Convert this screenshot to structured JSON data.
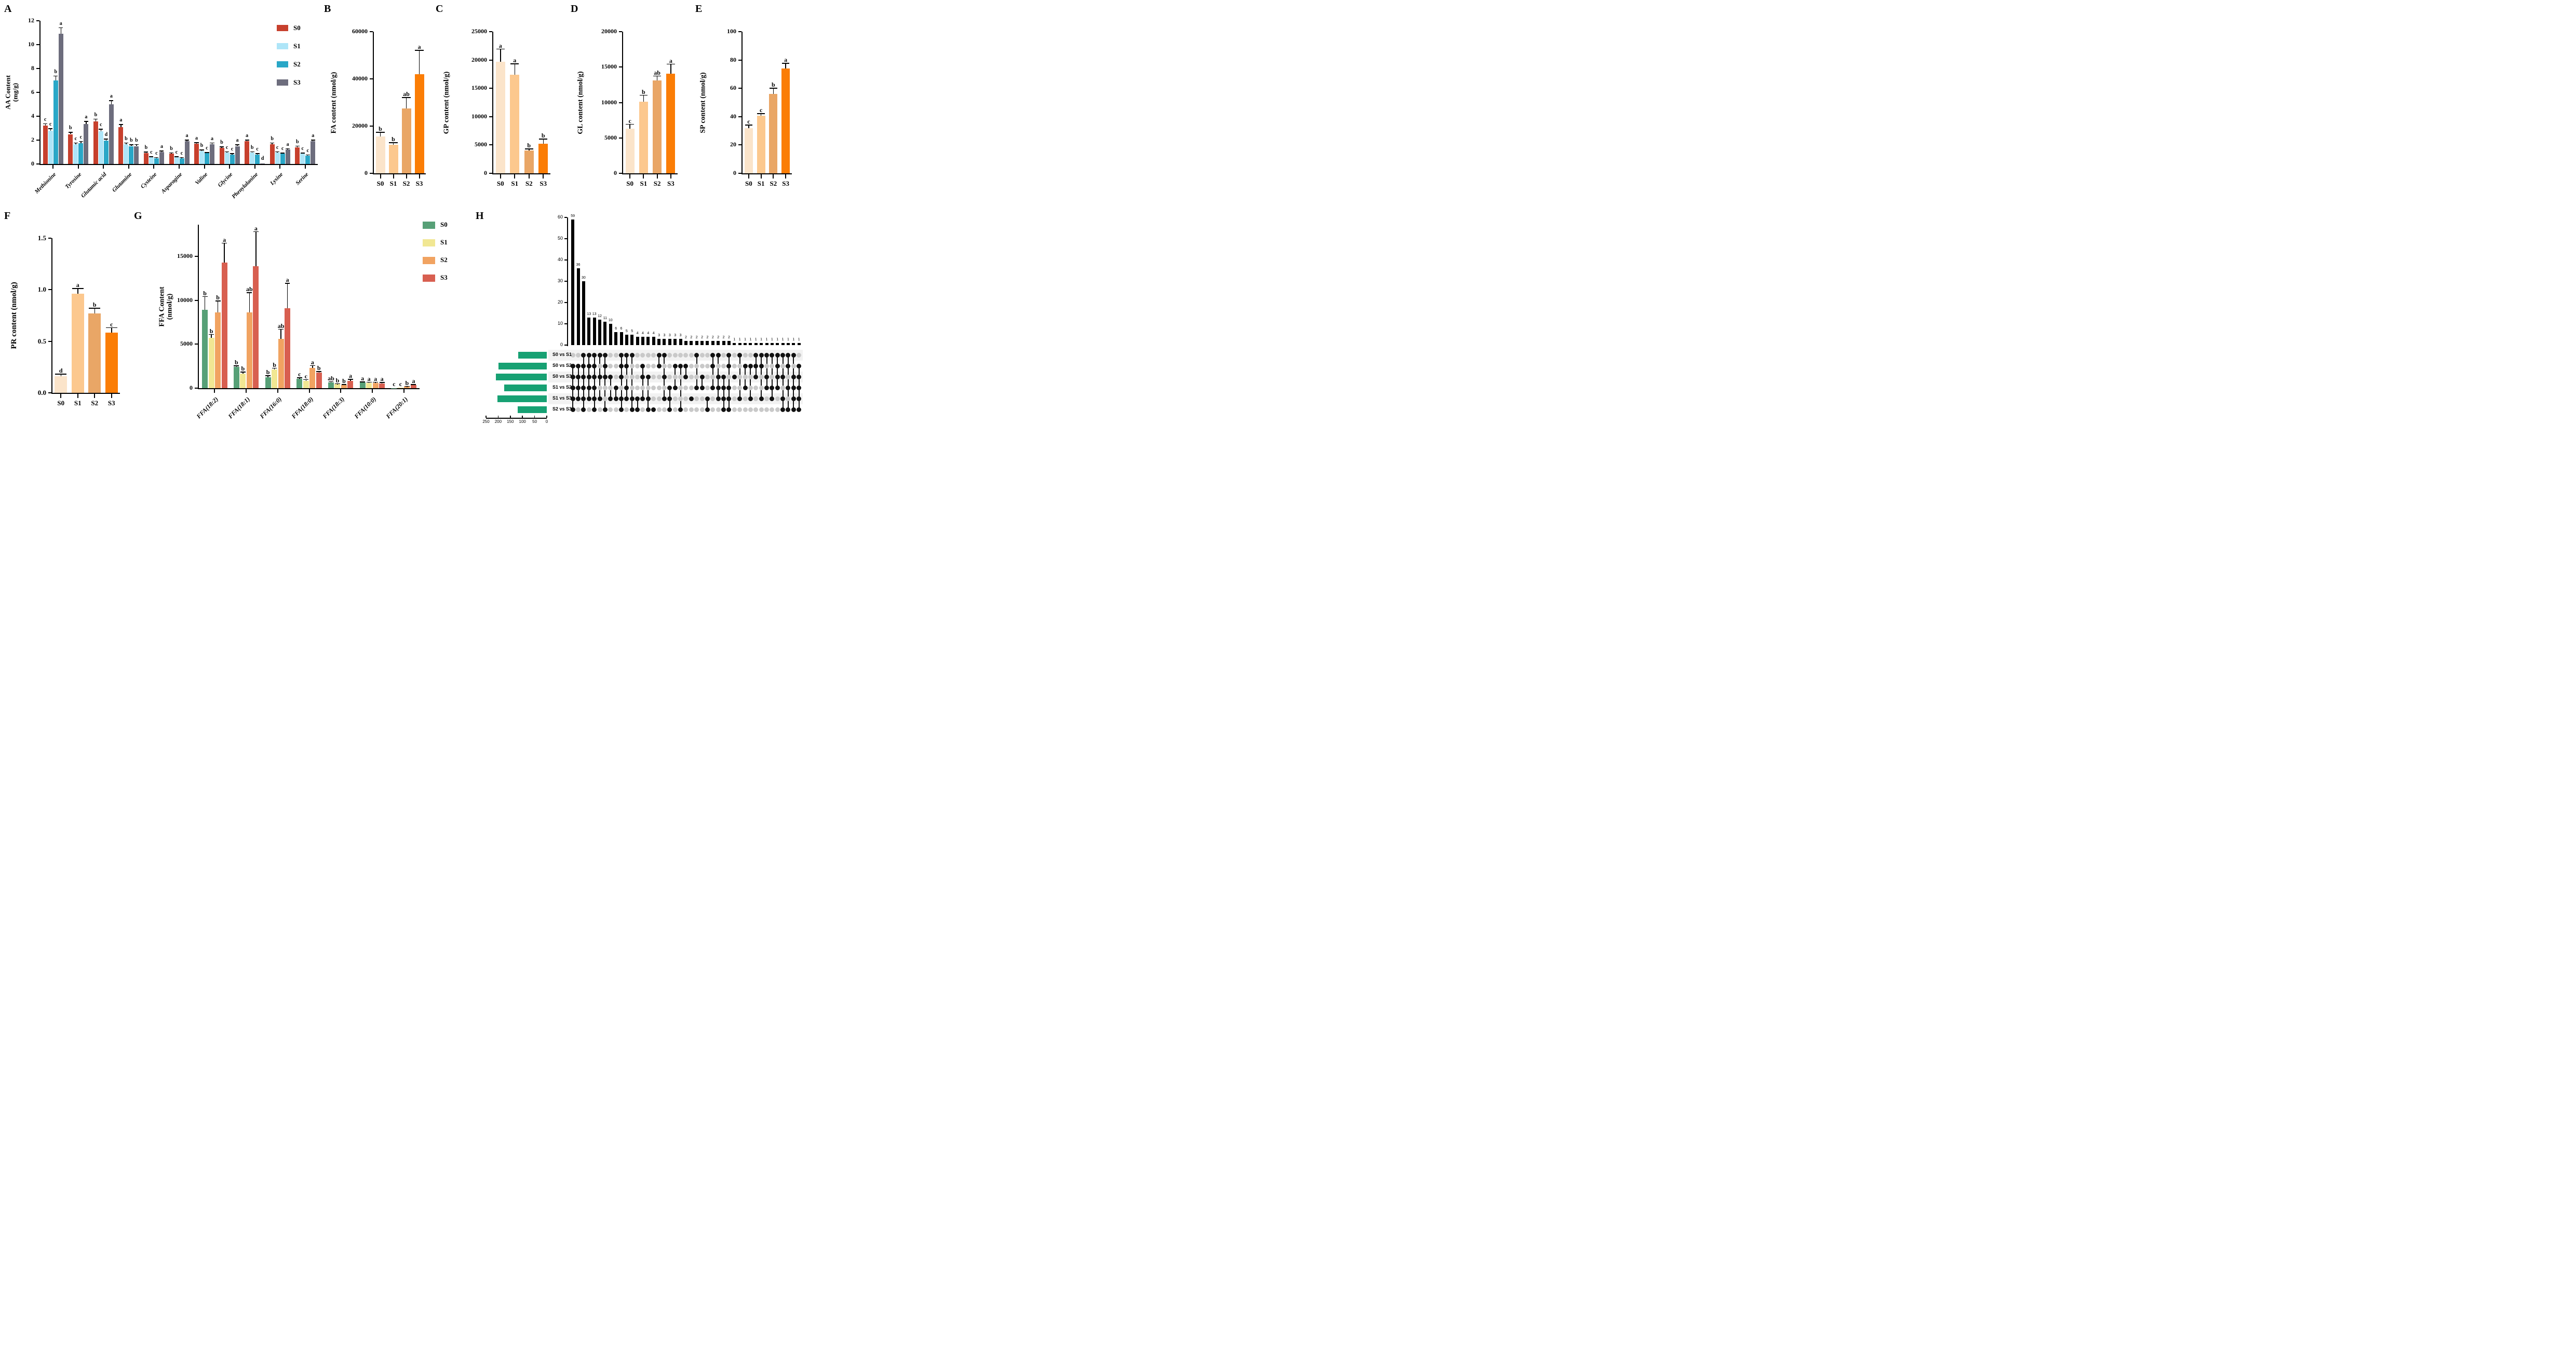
{
  "figure": {
    "background": "#ffffff",
    "panel_labels": [
      "A",
      "B",
      "C",
      "D",
      "E",
      "F",
      "G",
      "H"
    ]
  },
  "chart_data": [
    {
      "panel": "A",
      "type": "grouped_bar",
      "ylabel_lines": [
        "AA Content",
        "(mg/g)"
      ],
      "ylim": [
        0,
        12
      ],
      "yticks": [
        "0",
        "2",
        "4",
        "6",
        "8",
        "10",
        "12"
      ],
      "ytick_vals": [
        0,
        2,
        4,
        6,
        8,
        10,
        12
      ],
      "categories": [
        "Methionine",
        "Tyrosine",
        "Glutamic acid",
        "Glutamine",
        "Cysteine",
        "Asparagine",
        "Valine",
        "Glycine",
        "Phenylalanine",
        "Lysine",
        "Serine"
      ],
      "legend_position": "top-right",
      "series": [
        {
          "name": "S0",
          "color": "#c7402d",
          "values": [
            3.2,
            2.5,
            3.55,
            3.1,
            0.9,
            0.85,
            1.7,
            1.35,
            1.9,
            1.65,
            1.4
          ],
          "errors": [
            0.15,
            0.15,
            0.2,
            0.2,
            0.08,
            0.07,
            0.08,
            0.08,
            0.1,
            0.1,
            0.08
          ],
          "letters": [
            "c",
            "b",
            "b",
            "a",
            "b",
            "b",
            "a",
            "b",
            "a",
            "b",
            "b"
          ]
        },
        {
          "name": "S1",
          "color": "#aee5f8",
          "values": [
            2.8,
            1.65,
            2.75,
            1.65,
            0.55,
            0.55,
            1.1,
            0.95,
            0.95,
            0.95,
            0.85
          ],
          "errors": [
            0.15,
            0.1,
            0.15,
            0.1,
            0.05,
            0.05,
            0.07,
            0.06,
            0.06,
            0.06,
            0.06
          ],
          "letters": [
            "c",
            "c",
            "c",
            "b",
            "c",
            "c",
            "b",
            "c",
            "b",
            "c",
            "c"
          ]
        },
        {
          "name": "S2",
          "color": "#29a7c7",
          "values": [
            7.0,
            1.75,
            1.95,
            1.5,
            0.5,
            0.5,
            0.9,
            0.8,
            0.8,
            0.85,
            0.7
          ],
          "errors": [
            0.35,
            0.12,
            0.12,
            0.1,
            0.04,
            0.04,
            0.05,
            0.05,
            0.05,
            0.05,
            0.05
          ],
          "letters": [
            "b",
            "c",
            "d",
            "b",
            "c",
            "c",
            "c",
            "c",
            "c",
            "c",
            "c"
          ]
        },
        {
          "name": "S3",
          "color": "#6d6d7d",
          "values": [
            10.9,
            3.35,
            5.0,
            1.5,
            1.0,
            1.9,
            1.65,
            1.5,
            0.05,
            1.2,
            1.9
          ],
          "errors": [
            0.5,
            0.2,
            0.3,
            0.12,
            0.07,
            0.1,
            0.1,
            0.1,
            0.02,
            0.08,
            0.1
          ],
          "letters": [
            "a",
            "a",
            "a",
            "b",
            "a",
            "a",
            "a",
            "a",
            "d",
            "a",
            "a"
          ]
        }
      ]
    },
    {
      "panel": "B",
      "type": "bar",
      "ylabel": "FA content (nmol/g)",
      "ylim": [
        0,
        60000
      ],
      "yticks": [
        "0",
        "20000",
        "40000",
        "60000"
      ],
      "ytick_vals": [
        0,
        20000,
        40000,
        60000
      ],
      "categories": [
        "S0",
        "S1",
        "S2",
        "S3"
      ],
      "colors": [
        "#fbe4ca",
        "#fcc88e",
        "#e9a666",
        "#fb7d05"
      ],
      "values": [
        15500,
        12000,
        27500,
        42000
      ],
      "errors": [
        1800,
        900,
        4500,
        10000
      ],
      "letters": [
        "b",
        "b",
        "ab",
        "a"
      ]
    },
    {
      "panel": "C",
      "type": "bar",
      "ylabel": "GP content (nmol/g)",
      "ylim": [
        0,
        25000
      ],
      "yticks": [
        "0",
        "5000",
        "10000",
        "15000",
        "20000",
        "25000"
      ],
      "ytick_vals": [
        0,
        5000,
        10000,
        15000,
        20000,
        25000
      ],
      "categories": [
        "S0",
        "S1",
        "S2",
        "S3"
      ],
      "colors": [
        "#fbe4ca",
        "#fcc88e",
        "#e9a666",
        "#fb7d05"
      ],
      "values": [
        19700,
        17400,
        4000,
        5200
      ],
      "errors": [
        2200,
        1900,
        300,
        800
      ],
      "letters": [
        "a",
        "a",
        "b",
        "b"
      ]
    },
    {
      "panel": "D",
      "type": "bar",
      "ylabel": "GL content (nmol/g)",
      "ylim": [
        0,
        20000
      ],
      "yticks": [
        "0",
        "5000",
        "10000",
        "15000",
        "20000"
      ],
      "ytick_vals": [
        0,
        5000,
        10000,
        15000,
        20000
      ],
      "categories": [
        "S0",
        "S1",
        "S2",
        "S3"
      ],
      "colors": [
        "#fbe4ca",
        "#fcc88e",
        "#e9a666",
        "#fb7d05"
      ],
      "values": [
        6300,
        10100,
        13100,
        14100
      ],
      "errors": [
        600,
        900,
        600,
        1300
      ],
      "letters": [
        "c",
        "b",
        "ab",
        "a"
      ]
    },
    {
      "panel": "E",
      "type": "bar",
      "ylabel": "SP content (nmol/g)",
      "ylim": [
        0,
        100
      ],
      "yticks": [
        "0",
        "20",
        "40",
        "60",
        "80",
        "100"
      ],
      "ytick_vals": [
        0,
        20,
        40,
        60,
        80,
        100
      ],
      "categories": [
        "S0",
        "S1",
        "S2",
        "S3"
      ],
      "colors": [
        "#fbe4ca",
        "#fcc88e",
        "#e9a666",
        "#fb7d05"
      ],
      "values": [
        32,
        40.5,
        56,
        74
      ],
      "errors": [
        2,
        1.5,
        4,
        3.5
      ],
      "letters": [
        "c",
        "c",
        "b",
        "a"
      ]
    },
    {
      "panel": "F",
      "type": "bar",
      "ylabel": "PR content (nmol/g)",
      "ylim": [
        0,
        1.5
      ],
      "yticks": [
        "0.0",
        "0.5",
        "1.0",
        "1.5"
      ],
      "ytick_vals": [
        0,
        0.5,
        1.0,
        1.5
      ],
      "categories": [
        "S0",
        "S1",
        "S2",
        "S3"
      ],
      "colors": [
        "#fbe4ca",
        "#fcc88e",
        "#e9a666",
        "#fb7d05"
      ],
      "values": [
        0.16,
        0.96,
        0.77,
        0.585
      ],
      "errors": [
        0.02,
        0.05,
        0.05,
        0.045
      ],
      "letters": [
        "d",
        "a",
        "b",
        "c"
      ]
    },
    {
      "panel": "G",
      "type": "grouped_bar",
      "ylabel_lines": [
        "FFA Content",
        "(nmol/g)"
      ],
      "ylim": [
        0,
        18600
      ],
      "yticks": [
        "0",
        "5000",
        "10000",
        "15000"
      ],
      "ytick_vals": [
        0,
        5000,
        10000,
        15000
      ],
      "categories": [
        "FFA(18:2)",
        "FFA(18:1)",
        "FFA(16:0)",
        "FFA(18:0)",
        "FFA(18:3)",
        "FFA(10:0)",
        "FFA(20:1)"
      ],
      "legend_position": "top-right",
      "series": [
        {
          "name": "S0",
          "color": "#57a077",
          "values": [
            8900,
            2400,
            1250,
            1050,
            650,
            650,
            20
          ],
          "errors": [
            1500,
            120,
            150,
            120,
            60,
            50,
            10
          ],
          "letters": [
            "b",
            "b",
            "b",
            "c",
            "ab",
            "a",
            "c"
          ]
        },
        {
          "name": "S1",
          "color": "#f1e793",
          "values": [
            5700,
            1650,
            2100,
            850,
            450,
            600,
            30
          ],
          "errors": [
            400,
            180,
            150,
            120,
            50,
            50,
            10
          ],
          "letters": [
            "b",
            "b",
            "b",
            "c",
            "b",
            "a",
            "c"
          ]
        },
        {
          "name": "S2",
          "color": "#f1a361",
          "values": [
            8600,
            8650,
            5600,
            2300,
            350,
            600,
            150
          ],
          "errors": [
            1300,
            2200,
            1100,
            250,
            60,
            60,
            30
          ],
          "letters": [
            "b",
            "ab",
            "ab",
            "a",
            "b",
            "a",
            "b"
          ]
        },
        {
          "name": "S3",
          "color": "#d85f50",
          "values": [
            14300,
            13900,
            9100,
            1800,
            800,
            550,
            350
          ],
          "errors": [
            2200,
            3900,
            2800,
            80,
            180,
            80,
            40
          ],
          "letters": [
            "a",
            "a",
            "a",
            "b",
            "a",
            "a",
            "a"
          ]
        }
      ]
    },
    {
      "panel": "H",
      "type": "upset",
      "bar_color": "#000000",
      "set_bar_color": "#17a173",
      "dot_active": "#111111",
      "dot_inactive": "#c9c9c9",
      "intersection_yticks": [
        "0",
        "10",
        "20",
        "30",
        "40",
        "50",
        "60"
      ],
      "intersection_ytick_vals": [
        0,
        10,
        20,
        30,
        40,
        50,
        60
      ],
      "intersection_ylim": [
        0,
        60
      ],
      "set_axis_ticks": [
        "250",
        "200",
        "150",
        "100",
        "50",
        "0"
      ],
      "set_axis_tick_vals": [
        250,
        200,
        150,
        100,
        50,
        0
      ],
      "sets": [
        {
          "name": "S0 vs S1",
          "size": 118
        },
        {
          "name": "S0 vs S2",
          "size": 198
        },
        {
          "name": "S0 vs S3",
          "size": 210
        },
        {
          "name": "S1 vs S2",
          "size": 175
        },
        {
          "name": "S1 vs S3",
          "size": 202
        },
        {
          "name": "S2 vs S3",
          "size": 120
        }
      ],
      "intersections": [
        {
          "value": 59,
          "rows": [
            1,
            2,
            3,
            4,
            5
          ]
        },
        {
          "value": 36,
          "rows": [
            1,
            2,
            3,
            4
          ]
        },
        {
          "value": 30,
          "rows": [
            0,
            1,
            2,
            3,
            4,
            5
          ]
        },
        {
          "value": 13,
          "rows": [
            0,
            1,
            2,
            3,
            4
          ]
        },
        {
          "value": 13,
          "rows": [
            0,
            1,
            2,
            3,
            4,
            5
          ]
        },
        {
          "value": 12,
          "rows": [
            0,
            2,
            4
          ]
        },
        {
          "value": 11,
          "rows": [
            0,
            1,
            2,
            5
          ]
        },
        {
          "value": 10,
          "rows": [
            2,
            4
          ]
        },
        {
          "value": 6,
          "rows": [
            3,
            4
          ]
        },
        {
          "value": 6,
          "rows": [
            0,
            1,
            2,
            4,
            5
          ]
        },
        {
          "value": 5,
          "rows": [
            0,
            1,
            3,
            4
          ]
        },
        {
          "value": 5,
          "rows": [
            0,
            4,
            5
          ]
        },
        {
          "value": 4,
          "rows": [
            4,
            5
          ]
        },
        {
          "value": 4,
          "rows": [
            1,
            2,
            4
          ]
        },
        {
          "value": 4,
          "rows": [
            2,
            4,
            5
          ]
        },
        {
          "value": 4,
          "rows": [
            5
          ]
        },
        {
          "value": 3,
          "rows": [
            0,
            1
          ]
        },
        {
          "value": 3,
          "rows": [
            0,
            2,
            4
          ]
        },
        {
          "value": 3,
          "rows": [
            3,
            4,
            5
          ]
        },
        {
          "value": 3,
          "rows": [
            1,
            3
          ]
        },
        {
          "value": 3,
          "rows": [
            1,
            5
          ]
        },
        {
          "value": 2,
          "rows": [
            1,
            2
          ]
        },
        {
          "value": 2,
          "rows": [
            4
          ]
        },
        {
          "value": 2,
          "rows": [
            0,
            3
          ]
        },
        {
          "value": 2,
          "rows": [
            2,
            3
          ]
        },
        {
          "value": 2,
          "rows": [
            4,
            5
          ]
        },
        {
          "value": 2,
          "rows": [
            0,
            1,
            3
          ]
        },
        {
          "value": 2,
          "rows": [
            0,
            2,
            3,
            4
          ]
        },
        {
          "value": 2,
          "rows": [
            2,
            3,
            4,
            5
          ]
        },
        {
          "value": 2,
          "rows": [
            0,
            1,
            3,
            4,
            5
          ]
        },
        {
          "value": 1,
          "rows": [
            2
          ]
        },
        {
          "value": 1,
          "rows": [
            0,
            4
          ]
        },
        {
          "value": 1,
          "rows": [
            1,
            3
          ]
        },
        {
          "value": 1,
          "rows": [
            1,
            4
          ]
        },
        {
          "value": 1,
          "rows": [
            0,
            1,
            2
          ]
        },
        {
          "value": 1,
          "rows": [
            0,
            1,
            4
          ]
        },
        {
          "value": 1,
          "rows": [
            0,
            2,
            3
          ]
        },
        {
          "value": 1,
          "rows": [
            0,
            3,
            4
          ]
        },
        {
          "value": 1,
          "rows": [
            0,
            1,
            2,
            3
          ]
        },
        {
          "value": 1,
          "rows": [
            0,
            2,
            4,
            5
          ]
        },
        {
          "value": 1,
          "rows": [
            0,
            1,
            3,
            5
          ]
        },
        {
          "value": 1,
          "rows": [
            0,
            2,
            3,
            4,
            5
          ]
        },
        {
          "value": 1,
          "rows": [
            1,
            2,
            3,
            4,
            5
          ]
        }
      ]
    }
  ]
}
